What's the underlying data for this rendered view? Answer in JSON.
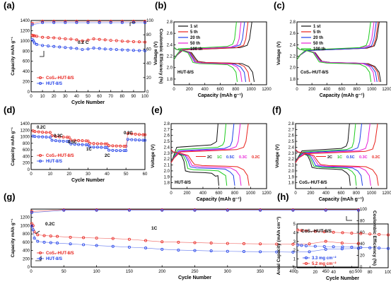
{
  "colors": {
    "red": "#e8211b",
    "blue": "#1f3fe8",
    "green": "#1fcc1f",
    "magenta": "#e81fd6",
    "black": "#111111",
    "axis": "#000000"
  },
  "chart_data": [
    {
      "id": "a",
      "panel_label": "(a)",
      "type": "scatter",
      "xlabel": "Cycle Number",
      "ylabel": "Capacity mAh g⁻¹",
      "y2label": "Coulombic Efficiency (%)",
      "xlim": [
        0,
        100
      ],
      "ylim": [
        0,
        1400
      ],
      "y2lim": [
        0,
        100
      ],
      "xticks": [
        "0",
        "10",
        "20",
        "30",
        "40",
        "50",
        "60",
        "70",
        "80",
        "90",
        "100"
      ],
      "yticks": [
        "0",
        "200",
        "400",
        "600",
        "800",
        "1000",
        "1200",
        "1400"
      ],
      "y2ticks": [
        "0",
        "20",
        "40",
        "60",
        "80",
        "100"
      ],
      "annotation": "0.2 C",
      "legend": [
        "CoS₂-HUT-8/S",
        "HUT-8/S"
      ],
      "series": [
        {
          "name": "CoS₂-HUT-8/S",
          "color": "red",
          "axis": "left",
          "x": [
            1,
            2,
            3,
            5,
            10,
            15,
            20,
            25,
            30,
            35,
            40,
            45,
            50,
            55,
            60,
            65,
            70,
            75,
            80,
            85,
            90,
            95,
            100
          ],
          "y": [
            1110,
            1100,
            1100,
            1090,
            1070,
            1065,
            1060,
            1050,
            1040,
            1035,
            1020,
            1000,
            1015,
            1040,
            1030,
            1020,
            1010,
            1005,
            995,
            990,
            985,
            980,
            975
          ]
        },
        {
          "name": "HUT-8/S",
          "color": "blue",
          "axis": "left",
          "x": [
            1,
            2,
            3,
            5,
            10,
            15,
            20,
            25,
            30,
            35,
            40,
            45,
            50,
            55,
            60,
            65,
            70,
            75,
            80,
            85,
            90,
            95,
            100
          ],
          "y": [
            1030,
            1000,
            960,
            930,
            910,
            900,
            890,
            880,
            870,
            860,
            850,
            830,
            840,
            860,
            850,
            840,
            835,
            830,
            825,
            820,
            815,
            810,
            805
          ]
        },
        {
          "name": "CE CoS₂-HUT-8/S",
          "color": "red",
          "axis": "right",
          "x": [
            1,
            10,
            20,
            30,
            40,
            50,
            60,
            70,
            80,
            90,
            100
          ],
          "y": [
            96,
            99,
            99,
            99,
            99,
            99,
            99,
            99,
            99,
            99,
            99
          ]
        },
        {
          "name": "CE HUT-8/S",
          "color": "blue",
          "axis": "right",
          "x": [
            1,
            10,
            20,
            30,
            40,
            50,
            60,
            70,
            80,
            90,
            100
          ],
          "y": [
            94,
            97,
            97,
            97,
            97,
            97,
            97,
            97,
            97,
            97,
            97
          ]
        }
      ]
    },
    {
      "id": "b",
      "panel_label": "(b)",
      "type": "line",
      "xlabel": "Capacity (mAh g⁻¹)",
      "ylabel": "Voltage (V)",
      "xlim": [
        0,
        1200
      ],
      "ylim": [
        1.7,
        2.8
      ],
      "xticks": [
        "0",
        "200",
        "400",
        "600",
        "800",
        "1000",
        "1200"
      ],
      "yticks": [
        "1.8",
        "2.0",
        "2.2",
        "2.4",
        "2.6",
        "2.8"
      ],
      "annotation": "HUT-8/S",
      "legend": [
        "1 st",
        "5 th",
        "20 th",
        "50 th",
        "100 th"
      ],
      "series": [
        {
          "name": "1 st",
          "color": "black",
          "discharge_cap": 1040,
          "charge_cap": 1010,
          "plateau_charge": 2.33,
          "plateau_dis": 2.09
        },
        {
          "name": "5 th",
          "color": "red",
          "discharge_cap": 980,
          "charge_cap": 960,
          "plateau_charge": 2.33,
          "plateau_dis": 2.09
        },
        {
          "name": "20 th",
          "color": "blue",
          "discharge_cap": 930,
          "charge_cap": 915,
          "plateau_charge": 2.34,
          "plateau_dis": 2.08
        },
        {
          "name": "50 th",
          "color": "magenta",
          "discharge_cap": 880,
          "charge_cap": 870,
          "plateau_charge": 2.34,
          "plateau_dis": 2.08
        },
        {
          "name": "100 th",
          "color": "green",
          "discharge_cap": 820,
          "charge_cap": 810,
          "plateau_charge": 2.35,
          "plateau_dis": 2.07
        }
      ]
    },
    {
      "id": "c",
      "panel_label": "(c)",
      "type": "line",
      "xlabel": "Capacity (mAh g⁻¹)",
      "ylabel": "Voltage (V)",
      "xlim": [
        0,
        1200
      ],
      "ylim": [
        1.7,
        2.8
      ],
      "xticks": [
        "0",
        "200",
        "400",
        "600",
        "800",
        "1000",
        "1200"
      ],
      "yticks": [
        "1.8",
        "2.0",
        "2.2",
        "2.4",
        "2.6",
        "2.8"
      ],
      "annotation": "CoS₂-HUT-8/S",
      "legend": [
        "1 st",
        "5 th",
        "20 th",
        "50 th",
        "100 th"
      ],
      "series": [
        {
          "name": "1 st",
          "color": "black",
          "discharge_cap": 1120,
          "charge_cap": 1100,
          "plateau_charge": 2.32,
          "plateau_dis": 2.09
        },
        {
          "name": "5 th",
          "color": "red",
          "discharge_cap": 1100,
          "charge_cap": 1085,
          "plateau_charge": 2.32,
          "plateau_dis": 2.09
        },
        {
          "name": "20 th",
          "color": "blue",
          "discharge_cap": 1070,
          "charge_cap": 1060,
          "plateau_charge": 2.32,
          "plateau_dis": 2.09
        },
        {
          "name": "50 th",
          "color": "magenta",
          "discharge_cap": 1040,
          "charge_cap": 1030,
          "plateau_charge": 2.33,
          "plateau_dis": 2.09
        },
        {
          "name": "100 th",
          "color": "green",
          "discharge_cap": 990,
          "charge_cap": 985,
          "plateau_charge": 2.33,
          "plateau_dis": 2.08
        }
      ]
    },
    {
      "id": "d",
      "panel_label": "(d)",
      "type": "scatter",
      "xlabel": "Cycle Number",
      "ylabel": "Capacity mAh g⁻¹",
      "xlim": [
        0,
        60
      ],
      "ylim": [
        0,
        1400
      ],
      "xticks": [
        "0",
        "10",
        "20",
        "30",
        "40",
        "50",
        "60"
      ],
      "yticks": [
        "0",
        "200",
        "400",
        "600",
        "800",
        "1000",
        "1200",
        "1400"
      ],
      "rate_labels": [
        "0.2C",
        "0.3C",
        "0.5C",
        "1C",
        "2C",
        "0.2C"
      ],
      "legend": [
        "CoS₂-HUT-8/S",
        "HUT-8/S"
      ],
      "series": [
        {
          "name": "CoS₂-HUT-8/S",
          "color": "red",
          "x": [
            1,
            2,
            4,
            6,
            8,
            10,
            11,
            13,
            15,
            17,
            19,
            20,
            21,
            23,
            25,
            27,
            29,
            30,
            31,
            33,
            35,
            37,
            39,
            40,
            41,
            43,
            45,
            47,
            49,
            50,
            51,
            53,
            55,
            57,
            59,
            60
          ],
          "y": [
            1180,
            1160,
            1150,
            1140,
            1130,
            1130,
            1030,
            1010,
            1000,
            990,
            985,
            980,
            900,
            890,
            885,
            880,
            875,
            870,
            800,
            795,
            790,
            785,
            780,
            780,
            730,
            725,
            720,
            715,
            710,
            710,
            1100,
            1090,
            1080,
            1070,
            1060,
            1060
          ]
        },
        {
          "name": "HUT-8/S",
          "color": "blue",
          "x": [
            1,
            2,
            4,
            6,
            8,
            10,
            11,
            13,
            15,
            17,
            19,
            20,
            21,
            23,
            25,
            27,
            29,
            30,
            31,
            33,
            35,
            37,
            39,
            40,
            41,
            43,
            45,
            47,
            49,
            50,
            51,
            53,
            55,
            57,
            59,
            60
          ],
          "y": [
            1020,
            1010,
            1000,
            995,
            990,
            985,
            890,
            880,
            870,
            865,
            860,
            860,
            780,
            770,
            765,
            760,
            755,
            750,
            690,
            685,
            680,
            675,
            670,
            670,
            590,
            585,
            580,
            580,
            580,
            580,
            920,
            910,
            905,
            900,
            895,
            890
          ]
        }
      ]
    },
    {
      "id": "e",
      "panel_label": "(e)",
      "type": "line",
      "xlabel": "Capacity (mAh g⁻¹)",
      "ylabel": "Voltage (V)",
      "xlim": [
        0,
        1200
      ],
      "ylim": [
        1.7,
        2.8
      ],
      "xticks": [
        "0",
        "200",
        "400",
        "600",
        "800",
        "1000",
        "1200"
      ],
      "yticks": [
        "1.8",
        "1.9",
        "2.0",
        "2.1",
        "2.2",
        "2.3",
        "2.4",
        "2.5",
        "2.6",
        "2.7",
        "2.8"
      ],
      "annotation": "HUT-8/S",
      "legend": [
        "2C",
        "1C",
        "0.5C",
        "0.3C",
        "0.2C"
      ],
      "series": [
        {
          "name": "2C",
          "color": "black",
          "discharge_cap": 600,
          "charge_cap": 590,
          "plateau_charge": 2.42,
          "plateau_dis": 1.98
        },
        {
          "name": "1C",
          "color": "green",
          "discharge_cap": 700,
          "charge_cap": 690,
          "plateau_charge": 2.38,
          "plateau_dis": 2.02
        },
        {
          "name": "0.5C",
          "color": "blue",
          "discharge_cap": 800,
          "charge_cap": 790,
          "plateau_charge": 2.36,
          "plateau_dis": 2.05
        },
        {
          "name": "0.3C",
          "color": "magenta",
          "discharge_cap": 880,
          "charge_cap": 870,
          "plateau_charge": 2.35,
          "plateau_dis": 2.07
        },
        {
          "name": "0.2C",
          "color": "red",
          "discharge_cap": 980,
          "charge_cap": 970,
          "plateau_charge": 2.34,
          "plateau_dis": 2.09
        }
      ]
    },
    {
      "id": "f",
      "panel_label": "(f)",
      "type": "line",
      "xlabel": "Capacity (mAh g⁻¹)",
      "ylabel": "Voltage (V)",
      "xlim": [
        0,
        1200
      ],
      "ylim": [
        1.7,
        2.8
      ],
      "xticks": [
        "0",
        "200",
        "400",
        "600",
        "800",
        "1000",
        "1200"
      ],
      "yticks": [
        "1.8",
        "1.9",
        "2.0",
        "2.1",
        "2.2",
        "2.3",
        "2.4",
        "2.5",
        "2.6",
        "2.7",
        "2.8"
      ],
      "annotation": "CoS₂-HUT-8/S",
      "legend": [
        "2C",
        "1C",
        "0.5C",
        "0.3C",
        "0.2C"
      ],
      "series": [
        {
          "name": "2C",
          "color": "black",
          "discharge_cap": 720,
          "charge_cap": 710,
          "plateau_charge": 2.36,
          "plateau_dis": 2.04
        },
        {
          "name": "1C",
          "color": "green",
          "discharge_cap": 800,
          "charge_cap": 790,
          "plateau_charge": 2.34,
          "plateau_dis": 2.06
        },
        {
          "name": "0.5C",
          "color": "blue",
          "discharge_cap": 880,
          "charge_cap": 870,
          "plateau_charge": 2.33,
          "plateau_dis": 2.07
        },
        {
          "name": "0.3C",
          "color": "magenta",
          "discharge_cap": 990,
          "charge_cap": 980,
          "plateau_charge": 2.32,
          "plateau_dis": 2.08
        },
        {
          "name": "0.2C",
          "color": "red",
          "discharge_cap": 1090,
          "charge_cap": 1080,
          "plateau_charge": 2.31,
          "plateau_dis": 2.09
        }
      ]
    },
    {
      "id": "g",
      "panel_label": "(g)",
      "type": "scatter",
      "xlabel": "Cycle Number",
      "ylabel": "Capacity mAh g⁻¹",
      "y2label": "Coulombic Efficiency (%)",
      "xlim": [
        0,
        500
      ],
      "ylim": [
        0,
        1400
      ],
      "y2lim": [
        0,
        100
      ],
      "xticks": [
        "0",
        "50",
        "100",
        "150",
        "200",
        "250",
        "300",
        "350",
        "400",
        "450",
        "500"
      ],
      "yticks": [
        "0",
        "200",
        "400",
        "600",
        "800",
        "1000",
        "1200"
      ],
      "y2ticks": [
        "0",
        "20",
        "40",
        "60",
        "80",
        "100"
      ],
      "annotations": [
        "0.2C",
        "1C"
      ],
      "legend": [
        "CoS₂-HUT-8/S",
        "HUT-8/S"
      ],
      "series": [
        {
          "name": "CoS₂-HUT-8/S",
          "color": "red",
          "axis": "left",
          "x": [
            1,
            3,
            5,
            10,
            20,
            30,
            40,
            60,
            80,
            100,
            125,
            150,
            175,
            200,
            225,
            250,
            275,
            300,
            325,
            350,
            375,
            400,
            425,
            450,
            475,
            500
          ],
          "y": [
            1050,
            1000,
            850,
            780,
            760,
            750,
            740,
            720,
            710,
            700,
            690,
            670,
            640,
            610,
            600,
            590,
            580,
            570,
            565,
            560,
            555,
            550,
            560,
            620,
            580,
            570
          ]
        },
        {
          "name": "HUT-8/S",
          "color": "blue",
          "axis": "left",
          "x": [
            1,
            3,
            5,
            10,
            20,
            30,
            40,
            60,
            80,
            100,
            125,
            150,
            175,
            200,
            225,
            250,
            275,
            300,
            325,
            350,
            375,
            400,
            425,
            450,
            475,
            500
          ],
          "y": [
            990,
            900,
            700,
            620,
            600,
            590,
            580,
            560,
            540,
            520,
            500,
            480,
            460,
            430,
            410,
            400,
            390,
            380,
            375,
            370,
            365,
            360,
            370,
            430,
            440,
            450
          ]
        },
        {
          "name": "CE CoS₂-HUT-8/S",
          "color": "red",
          "axis": "right",
          "x": [
            1,
            50,
            100,
            150,
            200,
            250,
            300,
            350,
            400,
            450,
            500
          ],
          "y": [
            96,
            99,
            99,
            99,
            99,
            99,
            99,
            99,
            99,
            99,
            99
          ]
        },
        {
          "name": "CE HUT-8/S",
          "color": "blue",
          "axis": "right",
          "x": [
            1,
            50,
            100,
            150,
            200,
            250,
            300,
            350,
            400,
            450,
            500
          ],
          "y": [
            94,
            98,
            98,
            98,
            98,
            98,
            98,
            98,
            98,
            98,
            98
          ]
        }
      ]
    },
    {
      "id": "h",
      "panel_label": "(h)",
      "type": "scatter",
      "xlabel": "Cycle Number",
      "ylabel": "Areal Capacity (mAh cm⁻²)",
      "xlim": [
        0,
        100
      ],
      "ylim": [
        0,
        5
      ],
      "xticks": [
        "0",
        "20",
        "40",
        "60",
        "80",
        "100"
      ],
      "yticks": [
        "0",
        "1",
        "2",
        "3",
        "4",
        "5"
      ],
      "annotation": "CoS₂-HUT-8/S",
      "legend": [
        "3.3 mg cm⁻²",
        "5.2 mg cm⁻²"
      ],
      "series": [
        {
          "name": "3.3 mg cm⁻²",
          "color": "blue",
          "x": [
            1,
            5,
            10,
            20,
            30,
            40,
            50,
            60,
            70,
            80,
            90,
            100
          ],
          "y": [
            2.6,
            2.55,
            2.5,
            2.45,
            2.42,
            2.4,
            2.38,
            2.35,
            2.32,
            2.28,
            2.25,
            2.2
          ]
        },
        {
          "name": "5.2 mg cm⁻²",
          "color": "red",
          "x": [
            1,
            5,
            10,
            20,
            30,
            40,
            50,
            60,
            70,
            80,
            90,
            100
          ],
          "y": [
            4.3,
            4.25,
            4.2,
            4.15,
            4.1,
            4.05,
            4.0,
            3.95,
            3.9,
            3.85,
            3.8,
            3.75
          ]
        }
      ]
    }
  ]
}
